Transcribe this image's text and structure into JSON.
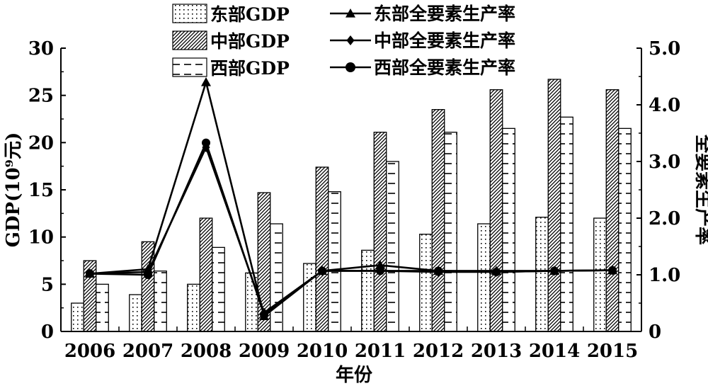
{
  "chart_data": {
    "type": "bar",
    "categories": [
      "2006",
      "2007",
      "2008",
      "2009",
      "2010",
      "2011",
      "2012",
      "2013",
      "2014",
      "2015"
    ],
    "series": [
      {
        "name": "东部GDP",
        "kind": "bar",
        "axis": "left",
        "pattern": "dots",
        "values": [
          3.0,
          3.9,
          5.0,
          6.2,
          7.2,
          8.6,
          10.3,
          11.4,
          12.1,
          12.0
        ]
      },
      {
        "name": "中部GDP",
        "kind": "bar",
        "axis": "left",
        "pattern": "diagonal-hatch",
        "values": [
          7.5,
          9.5,
          12.0,
          14.7,
          17.4,
          21.1,
          23.5,
          25.6,
          26.7,
          25.6
        ]
      },
      {
        "name": "西部GDP",
        "kind": "bar",
        "axis": "left",
        "pattern": "horizontal-dashes",
        "values": [
          5.0,
          6.4,
          8.9,
          11.4,
          14.8,
          18.0,
          21.1,
          21.5,
          22.7,
          21.5
        ]
      },
      {
        "name": "东部全要素生产率",
        "kind": "line",
        "axis": "right",
        "marker": "triangle",
        "values": [
          1.02,
          1.1,
          4.4,
          0.27,
          1.07,
          1.17,
          1.07,
          1.07,
          1.07,
          1.08
        ]
      },
      {
        "name": "中部全要素生产率",
        "kind": "line",
        "axis": "right",
        "marker": "diamond",
        "values": [
          1.02,
          1.05,
          3.25,
          0.33,
          1.07,
          1.07,
          1.05,
          1.05,
          1.07,
          1.08
        ]
      },
      {
        "name": "西部全要素生产率",
        "kind": "line",
        "axis": "right",
        "marker": "circle",
        "values": [
          1.02,
          1.0,
          3.33,
          0.3,
          1.07,
          1.07,
          1.07,
          1.05,
          1.07,
          1.08
        ]
      }
    ],
    "xlabel": "年份",
    "ylabel_left": "GDP(10⁹元)",
    "ylabel_right": "全要素生产率",
    "ylim_left": [
      0,
      30
    ],
    "ylim_right": [
      0,
      5.0
    ],
    "yticks_left": [
      "0",
      "5",
      "10",
      "15",
      "20",
      "25",
      "30"
    ],
    "yticks_right": [
      "0",
      "1.0",
      "2.0",
      "3.0",
      "4.0",
      "5.0"
    ],
    "legend_position": "top-center",
    "grid": false
  }
}
